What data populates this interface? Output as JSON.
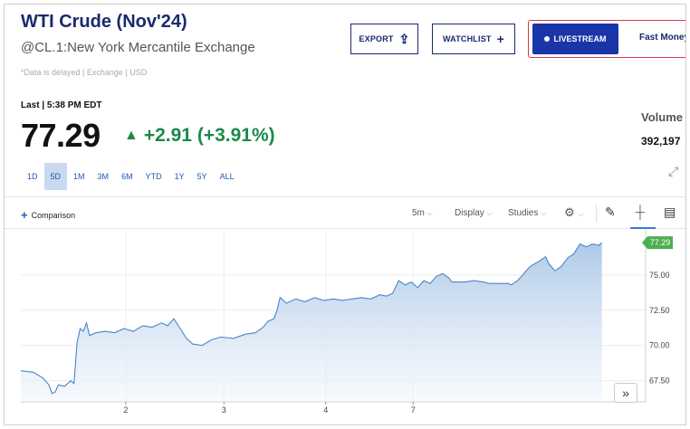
{
  "header": {
    "title": "WTI Crude (Nov'24)",
    "subtitle": "@CL.1:New York Mercantile Exchange",
    "delay_note": "*Data is delayed | Exchange | USD"
  },
  "buttons": {
    "export": "EXPORT",
    "watchlist": "WATCHLIST",
    "livestream": "LIVESTREAM",
    "fast_money": "Fast Money"
  },
  "quote": {
    "last_label": "Last | 5:38 PM EDT",
    "price": "77.29",
    "change": "+2.91 (+3.91%)",
    "volume_label": "Volume",
    "volume_value": "392,197"
  },
  "ranges": [
    "1D",
    "5D",
    "1M",
    "3M",
    "6M",
    "YTD",
    "1Y",
    "5Y",
    "ALL"
  ],
  "active_range": "5D",
  "toolbar": {
    "comparison": "Comparison",
    "interval": "5m",
    "display": "Display",
    "studies": "Studies"
  },
  "colors": {
    "accent": "#1a2a6c",
    "positive": "#1a8a4a",
    "line": "#4a86c5",
    "area_top": "#a9c6e6",
    "last_price_tag": "#4caf50"
  },
  "chart_data": {
    "type": "area",
    "x_tick_labels": [
      "2",
      "3",
      "4",
      "7"
    ],
    "y_tick_labels": [
      "75.00",
      "72.50",
      "70.00",
      "67.50"
    ],
    "ylim": [
      66.0,
      78.2
    ],
    "last_value_label": "77.29",
    "grid": true,
    "series": [
      {
        "values": [
          [
            0.0,
            68.2
          ],
          [
            0.02,
            68.1
          ],
          [
            0.035,
            67.7
          ],
          [
            0.045,
            67.2
          ],
          [
            0.05,
            66.6
          ],
          [
            0.055,
            66.7
          ],
          [
            0.06,
            67.2
          ],
          [
            0.07,
            67.1
          ],
          [
            0.08,
            67.5
          ],
          [
            0.085,
            67.3
          ],
          [
            0.09,
            70.2
          ],
          [
            0.095,
            71.2
          ],
          [
            0.1,
            71.0
          ],
          [
            0.105,
            71.6
          ],
          [
            0.11,
            70.7
          ],
          [
            0.12,
            70.9
          ],
          [
            0.135,
            71.0
          ],
          [
            0.15,
            70.9
          ],
          [
            0.165,
            71.2
          ],
          [
            0.18,
            71.0
          ],
          [
            0.195,
            71.4
          ],
          [
            0.21,
            71.3
          ],
          [
            0.225,
            71.6
          ],
          [
            0.235,
            71.4
          ],
          [
            0.245,
            71.9
          ],
          [
            0.255,
            71.2
          ],
          [
            0.265,
            70.5
          ],
          [
            0.275,
            70.1
          ],
          [
            0.29,
            70.0
          ],
          [
            0.305,
            70.4
          ],
          [
            0.32,
            70.6
          ],
          [
            0.34,
            70.5
          ],
          [
            0.36,
            70.8
          ],
          [
            0.375,
            70.9
          ],
          [
            0.385,
            71.2
          ],
          [
            0.39,
            71.4
          ],
          [
            0.395,
            71.7
          ],
          [
            0.405,
            71.9
          ],
          [
            0.41,
            72.5
          ],
          [
            0.415,
            73.4
          ],
          [
            0.425,
            73.0
          ],
          [
            0.44,
            73.3
          ],
          [
            0.455,
            73.1
          ],
          [
            0.47,
            73.4
          ],
          [
            0.485,
            73.2
          ],
          [
            0.5,
            73.3
          ],
          [
            0.515,
            73.2
          ],
          [
            0.53,
            73.3
          ],
          [
            0.545,
            73.4
          ],
          [
            0.56,
            73.3
          ],
          [
            0.575,
            73.6
          ],
          [
            0.585,
            73.5
          ],
          [
            0.595,
            73.7
          ],
          [
            0.605,
            74.6
          ],
          [
            0.615,
            74.3
          ],
          [
            0.625,
            74.5
          ],
          [
            0.635,
            74.1
          ],
          [
            0.645,
            74.6
          ],
          [
            0.655,
            74.4
          ],
          [
            0.665,
            74.9
          ],
          [
            0.675,
            75.1
          ],
          [
            0.685,
            74.8
          ],
          [
            0.69,
            74.5
          ],
          [
            0.71,
            74.5
          ],
          [
            0.725,
            74.6
          ],
          [
            0.74,
            74.5
          ],
          [
            0.75,
            74.4
          ],
          [
            0.765,
            74.4
          ],
          [
            0.78,
            74.4
          ],
          [
            0.785,
            74.3
          ],
          [
            0.795,
            74.6
          ],
          [
            0.805,
            75.1
          ],
          [
            0.815,
            75.6
          ],
          [
            0.83,
            76.0
          ],
          [
            0.84,
            76.3
          ],
          [
            0.845,
            75.8
          ],
          [
            0.855,
            75.3
          ],
          [
            0.865,
            75.6
          ],
          [
            0.875,
            76.2
          ],
          [
            0.885,
            76.5
          ],
          [
            0.895,
            77.2
          ],
          [
            0.905,
            77.0
          ],
          [
            0.915,
            77.2
          ],
          [
            0.925,
            77.1
          ],
          [
            0.93,
            77.29
          ]
        ]
      }
    ]
  }
}
